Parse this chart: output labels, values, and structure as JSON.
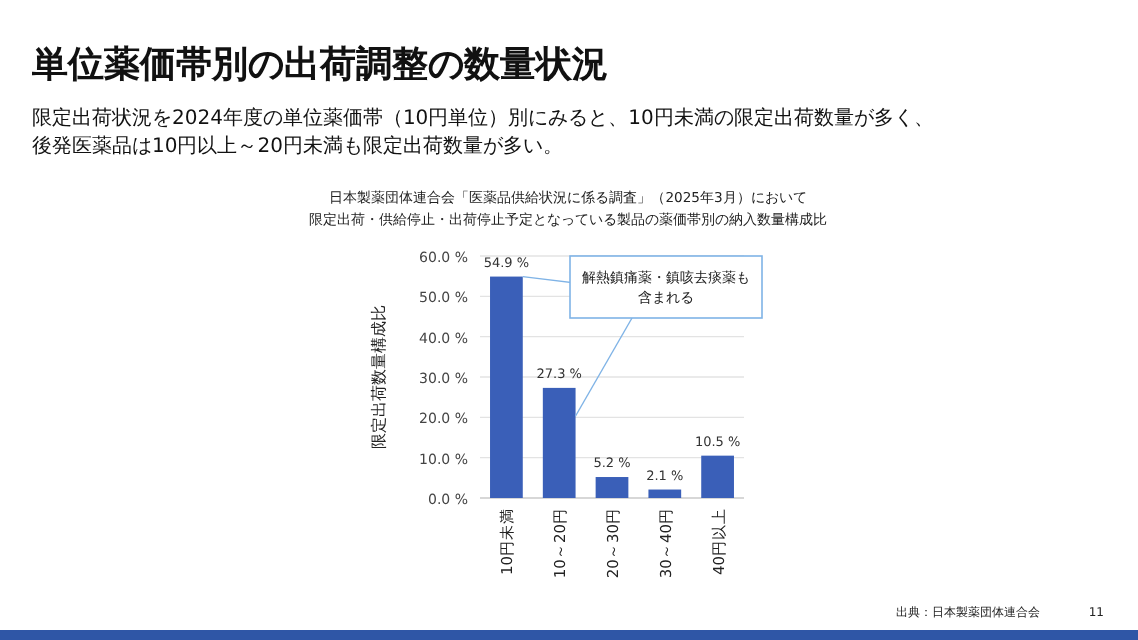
{
  "chart_data": {
    "type": "bar",
    "title": "日本製薬団体連合会「医薬品供給状況に係る調査」（2025年3月）において限定出荷・供給停止・出荷停止予定となっている製品の薬価帯別の納入数量構成比",
    "annotations": [
      "単位薬価帯別の出荷調整の数量状況",
      "限定出荷状況を2024年度の単位薬価帯（10円単位）別にみると、10円未満の限定出荷数量が多く、後発医薬品は10円以上～20円未満も限定出荷数量が多い。",
      {
        "text": "解熱鎮痛薬・鎮咳去痰薬も含まれる",
        "x": "10円未満",
        "y": 54.9
      },
      "出典：日本製薬団体連合会",
      "11"
    ],
    "ylabel": "限定出荷数量構成比",
    "categories": [
      "10円未満",
      "10～20円",
      "20～30円",
      "30～40円",
      "40円以上"
    ],
    "values": [
      54.9,
      27.3,
      5.2,
      2.1,
      10.5
    ],
    "value_labels": [
      "54.9 %",
      "27.3 %",
      "5.2 %",
      "2.1 %",
      "10.5 %"
    ],
    "color": "#3a5fb8",
    "ylim": [
      0,
      60
    ],
    "yticks": [
      {
        "value": 0,
        "label": "0.0 %"
      },
      {
        "value": 10,
        "label": "10.0 %"
      },
      {
        "value": 20,
        "label": "20.0 %"
      },
      {
        "value": 30,
        "label": "30.0 %"
      },
      {
        "value": 40,
        "label": "40.0 %"
      },
      {
        "value": 50,
        "label": "50.0 %"
      },
      {
        "value": 60,
        "label": "60.0 %"
      }
    ],
    "grid": "y"
  }
}
